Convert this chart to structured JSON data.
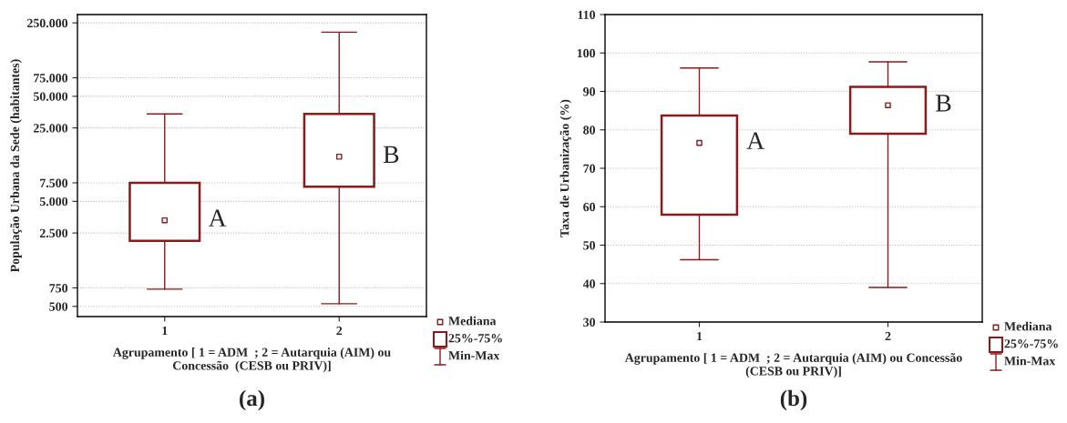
{
  "chart_data": [
    {
      "type": "box",
      "title": "(a)",
      "categories": [
        "1",
        "2"
      ],
      "xlabel": "Agrupamento [ 1 = ADM  ; 2 = Autarquia (AIM) ou\nConcessão  (CESB ou PRIV)]",
      "ylabel": "População Urbana da Sede (habitantes)",
      "color": "#8b1a1a",
      "log": true,
      "ylim": [
        400,
        300000
      ],
      "yticks": [
        {
          "value": 500,
          "label": "500"
        },
        {
          "value": 750,
          "label": "750"
        },
        {
          "value": 2500,
          "label": "2.500"
        },
        {
          "value": 5000,
          "label": "5.000"
        },
        {
          "value": 7500,
          "label": "7.500"
        },
        {
          "value": 25000,
          "label": "25.000"
        },
        {
          "value": 50000,
          "label": "50.000"
        },
        {
          "value": 75000,
          "label": "75.000"
        },
        {
          "value": 250000,
          "label": "250.000"
        }
      ],
      "boxes": [
        {
          "low": 730,
          "q1": 2100,
          "median": 3300,
          "q3": 7500,
          "high": 34000
        },
        {
          "low": 530,
          "q1": 6900,
          "median": 13300,
          "q3": 34000,
          "high": 204000
        }
      ],
      "annotations": [
        {
          "text": "A",
          "x": "1",
          "y": 3300
        },
        {
          "text": "B",
          "x": "2",
          "y": 13300
        },
        "Mediana",
        "25%-75%",
        "Min-Max"
      ],
      "grid": "y"
    },
    {
      "type": "box",
      "title": "(b)",
      "categories": [
        "1",
        "2"
      ],
      "xlabel": "Agrupamento [ 1 = ADM  ; 2 = Autarquia (AIM) ou Concessão\n(CESB ou PRIV)]",
      "ylabel": "Taxa de Urbanização (%)",
      "color": "#8b1a1a",
      "ylim": [
        30,
        110
      ],
      "yticks": [
        30,
        40,
        50,
        60,
        70,
        80,
        90,
        100,
        110
      ],
      "boxes": [
        {
          "low": 46.2,
          "q1": 57.9,
          "median": 76.6,
          "q3": 83.7,
          "high": 96.1
        },
        {
          "low": 39.0,
          "q1": 79.0,
          "median": 86.4,
          "q3": 91.2,
          "high": 97.7
        }
      ],
      "annotations": [
        {
          "text": "A",
          "x": "1",
          "y": 76.6
        },
        {
          "text": "B",
          "x": "2",
          "y": 86.4
        },
        "Mediana",
        "25%-75%",
        "Min-Max"
      ],
      "grid": "y"
    }
  ]
}
